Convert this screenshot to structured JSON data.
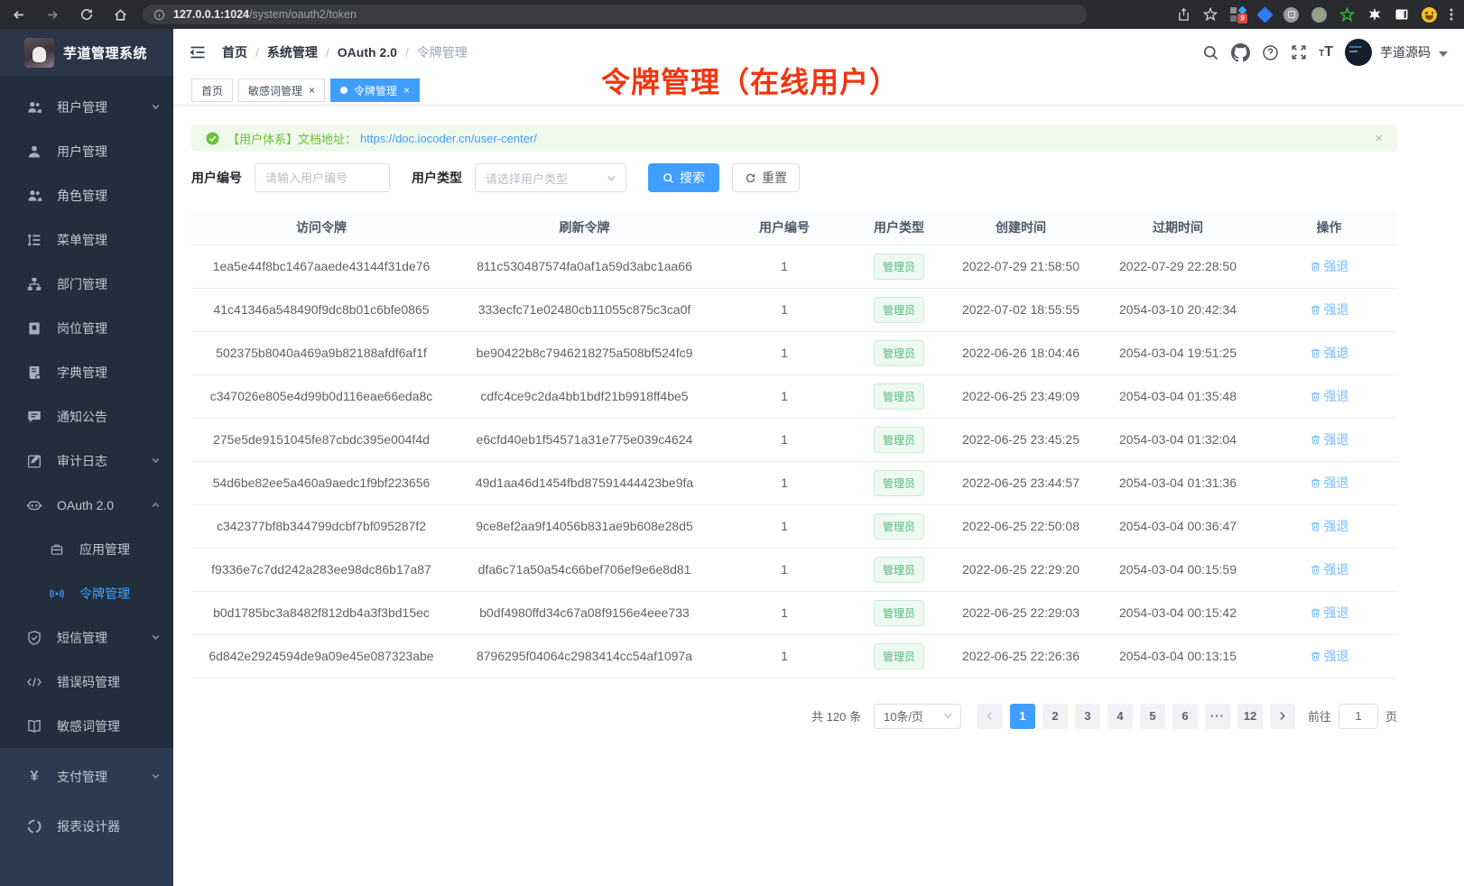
{
  "browser": {
    "url_host": "127.0.0.1:1024",
    "url_path": "/system/oauth2/token",
    "extension_badge": "9"
  },
  "app_header": {
    "logo_title": "芋道管理系统",
    "breadcrumb": [
      "首页",
      "系统管理",
      "OAuth 2.0",
      "令牌管理"
    ],
    "username": "芋道源码"
  },
  "annotation": "令牌管理（在线用户）",
  "sidebar": {
    "items": [
      {
        "key": "tenant",
        "label": "租户管理",
        "icon": "users-icon",
        "chevron": "down"
      },
      {
        "key": "user",
        "label": "用户管理",
        "icon": "user-icon"
      },
      {
        "key": "role",
        "label": "角色管理",
        "icon": "role-icon"
      },
      {
        "key": "menu",
        "label": "菜单管理",
        "icon": "menu-tree-icon"
      },
      {
        "key": "dept",
        "label": "部门管理",
        "icon": "org-icon"
      },
      {
        "key": "post",
        "label": "岗位管理",
        "icon": "post-icon"
      },
      {
        "key": "dict",
        "label": "字典管理",
        "icon": "dict-icon"
      },
      {
        "key": "notice",
        "label": "通知公告",
        "icon": "notice-icon"
      },
      {
        "key": "audit-log",
        "label": "审计日志",
        "icon": "log-icon",
        "chevron": "down"
      },
      {
        "key": "oauth2",
        "label": "OAuth 2.0",
        "icon": "oauth-icon",
        "chevron": "up"
      },
      {
        "key": "oauth2-app",
        "label": "应用管理",
        "icon": "briefcase-icon",
        "indent": 1
      },
      {
        "key": "oauth2-token",
        "label": "令牌管理",
        "icon": "broadcast-icon",
        "indent": 1,
        "active": true
      },
      {
        "key": "sms",
        "label": "短信管理",
        "icon": "shield-icon",
        "chevron": "down"
      },
      {
        "key": "error-code",
        "label": "错误码管理",
        "icon": "code-icon"
      },
      {
        "key": "sensitive-word",
        "label": "敏感词管理",
        "icon": "open-book-icon"
      },
      {
        "key": "pay",
        "label": "支付管理",
        "icon": "yen-icon",
        "chevron": "down",
        "section": "light"
      },
      {
        "key": "report-designer",
        "label": "报表设计器",
        "icon": "pie-icon",
        "section": "light"
      }
    ]
  },
  "tabs": [
    {
      "label": "首页",
      "closable": false,
      "active": false
    },
    {
      "label": "敏感词管理",
      "closable": true,
      "active": false
    },
    {
      "label": "令牌管理",
      "closable": true,
      "active": true
    }
  ],
  "alert": {
    "text": "【用户体系】文档地址：",
    "link": "https://doc.iocoder.cn/user-center/",
    "close_glyph": "×"
  },
  "filters": {
    "user_id_label": "用户编号",
    "user_id_placeholder": "请输入用户编号",
    "user_type_label": "用户类型",
    "user_type_placeholder": "请选择用户类型",
    "search_label": "搜索",
    "reset_label": "重置"
  },
  "table": {
    "headers": [
      "访问令牌",
      "刷新令牌",
      "用户编号",
      "用户类型",
      "创建时间",
      "过期时间",
      "操作"
    ],
    "action_label": "强退",
    "rows": [
      {
        "access": "1ea5e44f8bc1467aaede43144f31de76",
        "refresh": "811c530487574fa0af1a59d3abc1aa66",
        "user_id": "1",
        "user_type": "管理员",
        "created": "2022-07-29 21:58:50",
        "expires": "2022-07-29 22:28:50"
      },
      {
        "access": "41c41346a548490f9dc8b01c6bfe0865",
        "refresh": "333ecfc71e02480cb11055c875c3ca0f",
        "user_id": "1",
        "user_type": "管理员",
        "created": "2022-07-02 18:55:55",
        "expires": "2054-03-10 20:42:34"
      },
      {
        "access": "502375b8040a469a9b82188afdf6af1f",
        "refresh": "be90422b8c7946218275a508bf524fc9",
        "user_id": "1",
        "user_type": "管理员",
        "created": "2022-06-26 18:04:46",
        "expires": "2054-03-04 19:51:25"
      },
      {
        "access": "c347026e805e4d99b0d116eae66eda8c",
        "refresh": "cdfc4ce9c2da4bb1bdf21b9918ff4be5",
        "user_id": "1",
        "user_type": "管理员",
        "created": "2022-06-25 23:49:09",
        "expires": "2054-03-04 01:35:48"
      },
      {
        "access": "275e5de9151045fe87cbdc395e004f4d",
        "refresh": "e6cfd40eb1f54571a31e775e039c4624",
        "user_id": "1",
        "user_type": "管理员",
        "created": "2022-06-25 23:45:25",
        "expires": "2054-03-04 01:32:04"
      },
      {
        "access": "54d6be82ee5a460a9aedc1f9bf223656",
        "refresh": "49d1aa46d1454fbd87591444423be9fa",
        "user_id": "1",
        "user_type": "管理员",
        "created": "2022-06-25 23:44:57",
        "expires": "2054-03-04 01:31:36"
      },
      {
        "access": "c342377bf8b344799dcbf7bf095287f2",
        "refresh": "9ce8ef2aa9f14056b831ae9b608e28d5",
        "user_id": "1",
        "user_type": "管理员",
        "created": "2022-06-25 22:50:08",
        "expires": "2054-03-04 00:36:47"
      },
      {
        "access": "f9336e7c7dd242a283ee98dc86b17a87",
        "refresh": "dfa6c71a50a54c66bef706ef9e6e8d81",
        "user_id": "1",
        "user_type": "管理员",
        "created": "2022-06-25 22:29:20",
        "expires": "2054-03-04 00:15:59"
      },
      {
        "access": "b0d1785bc3a8482f812db4a3f3bd15ec",
        "refresh": "b0df4980ffd34c67a08f9156e4eee733",
        "user_id": "1",
        "user_type": "管理员",
        "created": "2022-06-25 22:29:03",
        "expires": "2054-03-04 00:15:42"
      },
      {
        "access": "6d842e2924594de9a09e45e087323abe",
        "refresh": "8796295f04064c2983414cc54af1097a",
        "user_id": "1",
        "user_type": "管理员",
        "created": "2022-06-25 22:26:36",
        "expires": "2054-03-04 00:13:15"
      }
    ]
  },
  "pagination": {
    "total": "共 120 条",
    "page_size": "10条/页",
    "pages": [
      "1",
      "2",
      "3",
      "4",
      "5",
      "6",
      "···",
      "12"
    ],
    "active_page": "1",
    "goto_label": "前往",
    "goto_value": "1",
    "goto_suffix": "页"
  },
  "colors": {
    "primary": "#409eff",
    "success": "#67c23a",
    "annotation_red": "#f5330f",
    "action_link": "#79bbff",
    "sidebar_bg": "#222d3d"
  }
}
